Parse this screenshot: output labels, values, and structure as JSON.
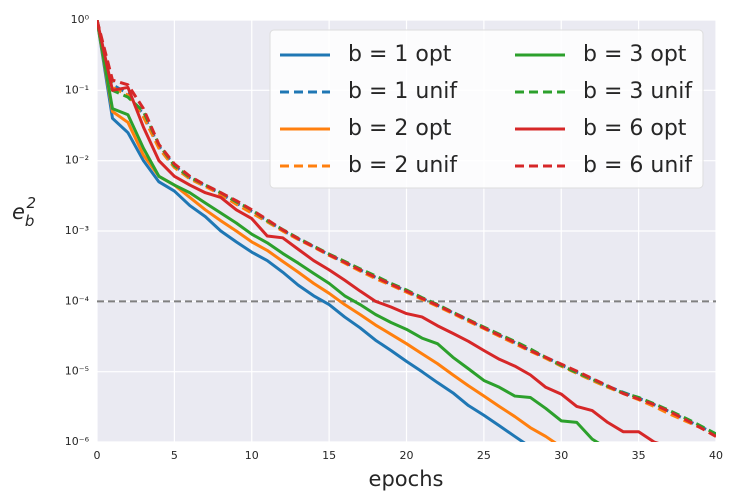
{
  "chart_data": {
    "type": "line",
    "xlabel": "epochs",
    "ylabel": {
      "base": "e",
      "sub": "b",
      "sup": "2"
    },
    "log_y": true,
    "grid": true,
    "legend": "upper right",
    "legend_columns": 2,
    "x": [
      0,
      1,
      2,
      3,
      4,
      5,
      6,
      7,
      8,
      9,
      10,
      11,
      12,
      13,
      14,
      15,
      16,
      17,
      18,
      19,
      20,
      21,
      22,
      23,
      24,
      25,
      26,
      27,
      28,
      29,
      30,
      31,
      32,
      33,
      34,
      35,
      36,
      37,
      38,
      39,
      40
    ],
    "xlim": [
      0,
      40
    ],
    "xticks": [
      0,
      5,
      10,
      15,
      20,
      25,
      30,
      35,
      40
    ],
    "ylim": [
      1e-06,
      1
    ],
    "yticks": [
      {
        "value": 1e-06,
        "label": "10⁻⁶"
      },
      {
        "value": 1e-05,
        "label": "10⁻⁵"
      },
      {
        "value": 0.0001,
        "label": "10⁻⁴"
      },
      {
        "value": 0.001,
        "label": "10⁻³"
      },
      {
        "value": 0.01,
        "label": "10⁻²"
      },
      {
        "value": 0.1,
        "label": "10⁻¹"
      },
      {
        "value": 1,
        "label": "10⁰"
      }
    ],
    "hlines": [
      {
        "value": 0.0001,
        "color": "#808080",
        "style": "dashed"
      }
    ],
    "series": [
      {
        "name": "b = 1 opt",
        "color": "#1f77b4",
        "style": "solid",
        "values": [
          1,
          0.04,
          0.025,
          0.01,
          0.005,
          0.0037,
          0.0023,
          0.0016,
          0.001,
          0.0007,
          0.0005,
          0.00038,
          0.00026,
          0.00017,
          0.00012,
          9e-05,
          6e-05,
          4.2e-05,
          2.8e-05,
          2e-05,
          1.4e-05,
          1e-05,
          7e-06,
          5e-06,
          3.3e-06,
          2.4e-06,
          1.7e-06,
          1.2e-06,
          8.5e-07,
          null,
          null,
          null,
          null,
          null,
          null,
          null,
          null,
          null,
          null,
          null,
          null
        ]
      },
      {
        "name": "b = 1 unif",
        "color": "#1f77b4",
        "style": "dashed",
        "values": [
          1,
          0.12,
          0.09,
          0.045,
          0.016,
          0.0085,
          0.0057,
          0.0044,
          0.0034,
          0.0025,
          0.0019,
          0.0014,
          0.00102,
          0.00077,
          0.0006,
          0.00046,
          0.00036,
          0.00028,
          0.00022,
          0.000175,
          0.00014,
          0.00011,
          8.8e-05,
          6.9e-05,
          5.4e-05,
          4.2e-05,
          3.3e-05,
          2.6e-05,
          2e-05,
          1.6e-05,
          1.25e-05,
          9.8e-06,
          7.7e-06,
          6.2e-06,
          5.1e-06,
          4.2e-06,
          3.4e-06,
          2.7e-06,
          2.1e-06,
          1.65e-06,
          1.3e-06
        ]
      },
      {
        "name": "b = 2 opt",
        "color": "#ff7f0e",
        "style": "solid",
        "values": [
          1,
          0.05,
          0.035,
          0.012,
          0.006,
          0.0045,
          0.003,
          0.002,
          0.0014,
          0.001,
          0.0007,
          0.00053,
          0.00037,
          0.00026,
          0.00018,
          0.00013,
          9e-05,
          6.5e-05,
          4.6e-05,
          3.4e-05,
          2.5e-05,
          1.8e-05,
          1.3e-05,
          9e-06,
          6.3e-06,
          4.5e-06,
          3.2e-06,
          2.3e-06,
          1.6e-06,
          1.2e-06,
          8.5e-07,
          null,
          null,
          null,
          null,
          null,
          null,
          null,
          null,
          null,
          null
        ]
      },
      {
        "name": "b = 2 unif",
        "color": "#ff7f0e",
        "style": "dashed",
        "values": [
          1,
          0.11,
          0.085,
          0.042,
          0.015,
          0.008,
          0.0055,
          0.0043,
          0.0033,
          0.0024,
          0.0018,
          0.00135,
          0.001,
          0.00076,
          0.00059,
          0.00045,
          0.00035,
          0.00027,
          0.00021,
          0.00017,
          0.000135,
          0.000107,
          8.5e-05,
          6.7e-05,
          5.2e-05,
          4.1e-05,
          3.2e-05,
          2.5e-05,
          1.95e-05,
          1.55e-05,
          1.2e-05,
          9.5e-06,
          7.5e-06,
          6e-06,
          4.9e-06,
          4e-06,
          3.2e-06,
          2.5e-06,
          2e-06,
          1.6e-06,
          1.2e-06
        ]
      },
      {
        "name": "b = 3 opt",
        "color": "#2ca02c",
        "style": "solid",
        "values": [
          1,
          0.055,
          0.045,
          0.015,
          0.006,
          0.0045,
          0.0035,
          0.0025,
          0.0018,
          0.0013,
          0.0009,
          0.00068,
          0.00048,
          0.00035,
          0.00025,
          0.00018,
          0.00012,
          9e-05,
          6.5e-05,
          5e-05,
          4e-05,
          3e-05,
          2.5e-05,
          1.6e-05,
          1.1e-05,
          7.5e-06,
          6e-06,
          4.5e-06,
          4.3e-06,
          3e-06,
          2e-06,
          1.9e-06,
          1.1e-06,
          8e-07,
          null,
          null,
          null,
          null,
          null,
          null,
          null
        ]
      },
      {
        "name": "b = 3 unif",
        "color": "#2ca02c",
        "style": "dashed",
        "values": [
          1,
          0.1,
          0.08,
          0.05,
          0.017,
          0.0085,
          0.0058,
          0.0045,
          0.0035,
          0.0026,
          0.002,
          0.0014,
          0.00105,
          0.00079,
          0.00061,
          0.00047,
          0.00037,
          0.00029,
          0.00023,
          0.00018,
          0.000145,
          0.000113,
          9e-05,
          7e-05,
          5.5e-05,
          4.3e-05,
          3.4e-05,
          2.7e-05,
          2.1e-05,
          1.6e-05,
          1.23e-05,
          9.7e-06,
          7.8e-06,
          6.2e-06,
          5e-06,
          4.3e-06,
          3.5e-06,
          2.8e-06,
          2.2e-06,
          1.7e-06,
          1.3e-06
        ]
      },
      {
        "name": "b = 6 opt",
        "color": "#d62728",
        "style": "solid",
        "values": [
          1,
          0.1,
          0.11,
          0.03,
          0.01,
          0.006,
          0.0045,
          0.0035,
          0.003,
          0.002,
          0.0015,
          0.00085,
          0.0008,
          0.00055,
          0.00038,
          0.00028,
          0.0002,
          0.00014,
          0.0001,
          8.3e-05,
          6.7e-05,
          6e-05,
          4.5e-05,
          3.5e-05,
          2.7e-05,
          2e-05,
          1.5e-05,
          1.2e-05,
          9e-06,
          6e-06,
          4.8e-06,
          3.2e-06,
          2.8e-06,
          1.9e-06,
          1.4e-06,
          1.4e-06,
          1e-06,
          8.5e-07,
          null,
          null,
          null
        ]
      },
      {
        "name": "b = 6 unif",
        "color": "#d62728",
        "style": "dashed",
        "values": [
          1,
          0.14,
          0.12,
          0.055,
          0.017,
          0.009,
          0.006,
          0.0045,
          0.0035,
          0.0027,
          0.002,
          0.00145,
          0.00104,
          0.00078,
          0.0006,
          0.00046,
          0.00036,
          0.00028,
          0.00022,
          0.000175,
          0.00014,
          0.00011,
          8.8e-05,
          6.9e-05,
          5.4e-05,
          4.2e-05,
          3.3e-05,
          2.6e-05,
          2e-05,
          1.6e-05,
          1.28e-05,
          1.02e-05,
          8e-06,
          6.3e-06,
          4.9e-06,
          4.1e-06,
          3.4e-06,
          2.7e-06,
          2.1e-06,
          1.6e-06,
          1.2e-06
        ]
      }
    ]
  }
}
